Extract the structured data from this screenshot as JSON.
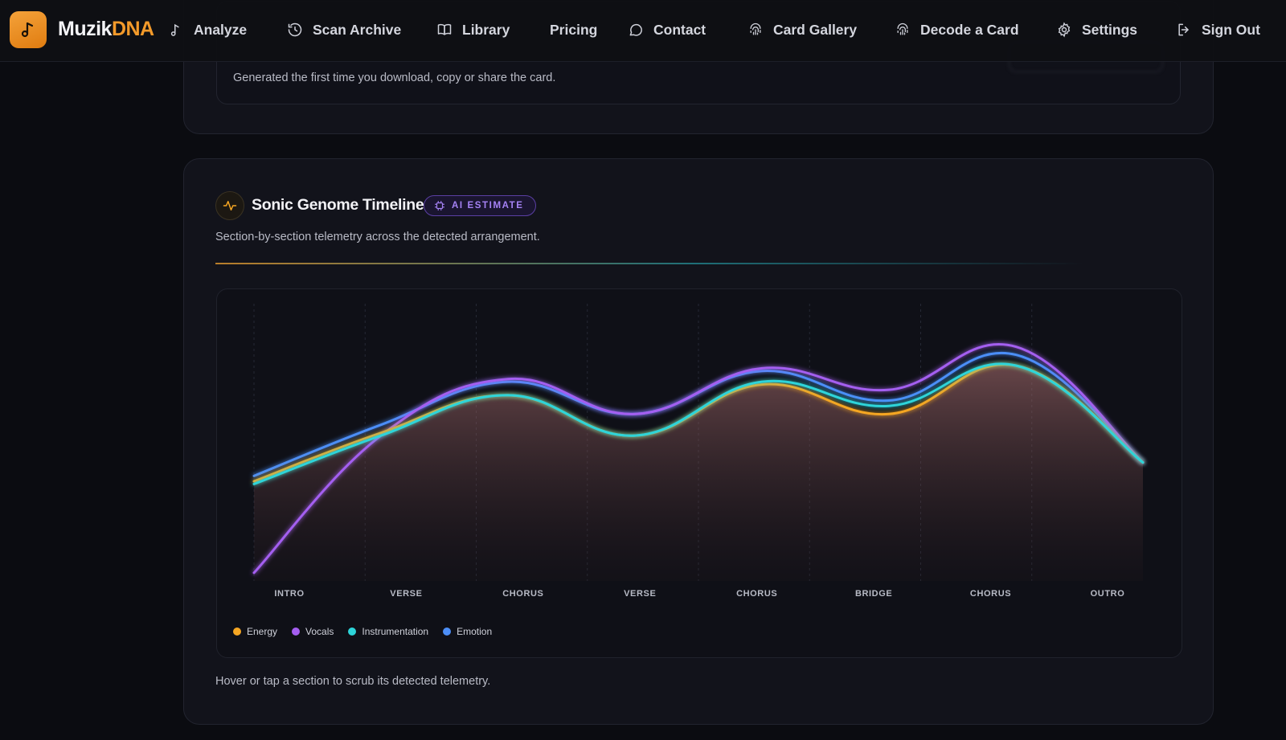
{
  "brand": {
    "name_part1": "Muzik",
    "name_part2": "DNA",
    "logo_icon": "music-note-icon"
  },
  "nav": [
    {
      "label": "Analyze",
      "icon": "music-note-icon"
    },
    {
      "label": "Scan Archive",
      "icon": "history-icon"
    },
    {
      "label": "Library",
      "icon": "book-icon"
    },
    {
      "label": "Pricing",
      "icon": ""
    },
    {
      "label": "Contact",
      "icon": "chat-bubble-icon"
    },
    {
      "label": "Card Gallery",
      "icon": "fingerprint-icon"
    },
    {
      "label": "Decode a Card",
      "icon": "fingerprint-icon"
    },
    {
      "label": "Settings",
      "icon": "gear-icon"
    },
    {
      "label": "Sign Out",
      "icon": "sign-out-icon"
    }
  ],
  "share_card": {
    "note": "Generated the first time you download, copy or share the card."
  },
  "timeline": {
    "title": "Sonic Genome Timeline",
    "badge": "AI ESTIMATE",
    "subtitle": "Section-by-section telemetry across the detected arrangement.",
    "footer": "Hover or tap a section to scrub its detected telemetry."
  },
  "colors": {
    "accent": "#f39a2a",
    "energy": "#f5a623",
    "vocals": "#a45ef0",
    "instrumentation": "#2dd4d9",
    "emotion": "#4c8ef7"
  },
  "chart_data": {
    "type": "line",
    "categories": [
      "INTRO",
      "VERSE",
      "CHORUS",
      "VERSE",
      "CHORUS",
      "BRIDGE",
      "CHORUS",
      "OUTRO"
    ],
    "ylim": [
      0,
      100
    ],
    "grid": "vertical dashed lines",
    "legend_placement": "bottom-left",
    "series": [
      {
        "name": "Energy",
        "color": "#f5a623",
        "values": [
          37,
          55,
          69,
          54,
          73,
          62,
          80,
          44
        ]
      },
      {
        "name": "Vocals",
        "color": "#a45ef0",
        "values": [
          3,
          54,
          75,
          62,
          79,
          71,
          87,
          44
        ]
      },
      {
        "name": "Instrumentation",
        "color": "#2dd4d9",
        "values": [
          36,
          54,
          69,
          54,
          74,
          65,
          80,
          44
        ]
      },
      {
        "name": "Emotion",
        "color": "#4c8ef7",
        "values": [
          39,
          58,
          74,
          62,
          78,
          67,
          84,
          44
        ]
      }
    ]
  }
}
